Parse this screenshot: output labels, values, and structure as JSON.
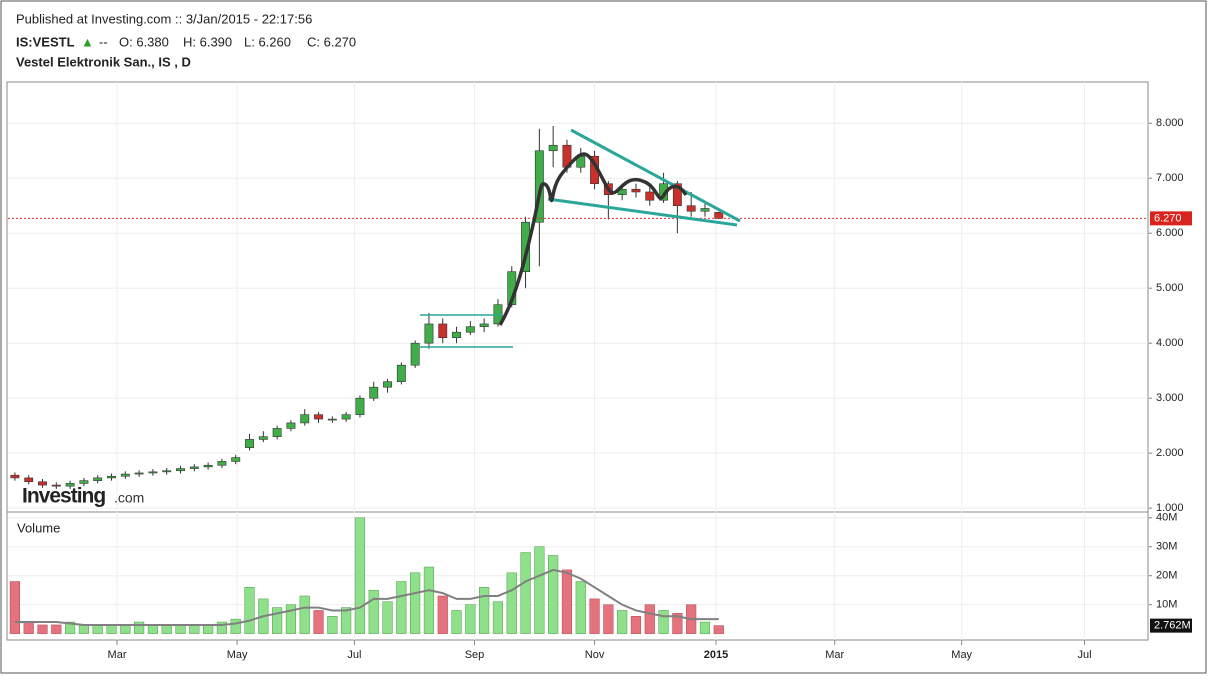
{
  "header": {
    "published": "Published at Investing.com :: 3/Jan/2015 - 22:17:56",
    "symbol": "IS:VESTL",
    "arrow": "▲",
    "change": "--",
    "ohlc": [
      "O: 6.380",
      "H: 6.390",
      "L: 6.260",
      "C: 6.270"
    ],
    "name": "Vestel Elektronik San., IS , D",
    "logo": "Investing",
    "logo_suffix": ".com"
  },
  "chart_data": [
    {
      "type": "candlestick",
      "categories": [
        null,
        null,
        null,
        null,
        null,
        null,
        null,
        null,
        null,
        null,
        null,
        null,
        null,
        null,
        null,
        null,
        null,
        null,
        null,
        null,
        null,
        null,
        null,
        null,
        null,
        null,
        null,
        null,
        null,
        null,
        null,
        null,
        null,
        null,
        null,
        null,
        null,
        null,
        null,
        null,
        null,
        null,
        null,
        null,
        null,
        null,
        null,
        null,
        null,
        null,
        null,
        null
      ],
      "open": [
        1.6,
        1.55,
        1.48,
        1.42,
        1.4,
        1.45,
        1.5,
        1.55,
        1.58,
        1.62,
        1.64,
        1.66,
        1.68,
        1.72,
        1.75,
        1.78,
        1.85,
        2.1,
        2.25,
        2.3,
        2.45,
        2.55,
        2.7,
        2.62,
        2.62,
        2.7,
        3.0,
        3.2,
        3.3,
        3.6,
        4.0,
        4.35,
        4.1,
        4.2,
        4.3,
        4.35,
        4.7,
        5.3,
        6.2,
        7.5,
        7.6,
        7.2,
        7.4,
        6.9,
        6.7,
        6.8,
        6.75,
        6.6,
        6.9,
        6.5,
        6.4,
        6.38
      ],
      "high": [
        1.65,
        1.6,
        1.53,
        1.47,
        1.5,
        1.55,
        1.6,
        1.63,
        1.67,
        1.69,
        1.71,
        1.73,
        1.77,
        1.8,
        1.83,
        1.9,
        1.97,
        2.35,
        2.4,
        2.5,
        2.6,
        2.8,
        2.75,
        2.67,
        2.75,
        3.05,
        3.3,
        3.35,
        3.65,
        4.05,
        4.55,
        4.45,
        4.3,
        4.4,
        4.45,
        4.8,
        5.4,
        6.3,
        7.9,
        7.95,
        7.7,
        7.55,
        7.5,
        6.95,
        6.9,
        6.9,
        6.85,
        7.1,
        6.95,
        6.75,
        6.55,
        6.39
      ],
      "low": [
        1.5,
        1.43,
        1.37,
        1.35,
        1.35,
        1.4,
        1.45,
        1.5,
        1.53,
        1.57,
        1.59,
        1.61,
        1.63,
        1.67,
        1.7,
        1.73,
        1.8,
        2.05,
        2.2,
        2.25,
        2.4,
        2.5,
        2.55,
        2.55,
        2.57,
        2.65,
        2.95,
        3.1,
        3.25,
        3.55,
        3.9,
        4.0,
        4.0,
        4.15,
        4.2,
        4.3,
        4.65,
        5.0,
        5.4,
        7.2,
        7.1,
        7.1,
        6.8,
        6.25,
        6.6,
        6.65,
        6.5,
        6.55,
        6.0,
        6.3,
        6.3,
        6.26
      ],
      "close": [
        1.55,
        1.48,
        1.42,
        1.4,
        1.45,
        1.5,
        1.55,
        1.58,
        1.62,
        1.64,
        1.66,
        1.68,
        1.72,
        1.75,
        1.78,
        1.85,
        1.92,
        2.25,
        2.3,
        2.45,
        2.55,
        2.7,
        2.62,
        2.62,
        2.7,
        3.0,
        3.2,
        3.3,
        3.6,
        4.0,
        4.35,
        4.1,
        4.2,
        4.3,
        4.35,
        4.7,
        5.3,
        6.2,
        7.5,
        7.6,
        7.2,
        7.4,
        6.9,
        6.7,
        6.8,
        6.75,
        6.6,
        6.9,
        6.5,
        6.4,
        6.45,
        6.27
      ],
      "up_color": "#3fae49",
      "down_color": "#c9302c",
      "last_price": {
        "value": 6.27,
        "label": "6.270"
      },
      "xlim": [
        -0.5,
        82.1
      ],
      "ylim": [
        0.93,
        8.75
      ],
      "yticks": [
        {
          "value": 1,
          "label": "1.000"
        },
        {
          "value": 2,
          "label": "2.000"
        },
        {
          "value": 3,
          "label": "3.000"
        },
        {
          "value": 4,
          "label": "4.000"
        },
        {
          "value": 5,
          "label": "5.000"
        },
        {
          "value": 6,
          "label": "6.000"
        },
        {
          "value": 7,
          "label": "7.000"
        },
        {
          "value": 8,
          "label": "8.000"
        }
      ],
      "grid": true
    },
    {
      "type": "bar",
      "title": "Volume",
      "values": [
        18,
        4,
        3,
        3,
        4,
        3,
        3,
        3,
        3,
        4,
        3,
        3,
        3,
        3,
        3,
        4,
        5,
        16,
        12,
        9,
        10,
        13,
        8,
        6,
        9,
        40,
        15,
        11,
        18,
        21,
        23,
        13,
        8,
        10,
        16,
        11,
        21,
        28,
        30,
        27,
        22,
        18,
        12,
        10,
        8,
        6,
        10,
        8,
        7,
        10,
        4,
        2.762
      ],
      "last_label": "2.762M",
      "average": {
        "color": "#808080",
        "values": [
          4,
          4,
          4,
          4,
          3.5,
          3,
          3,
          3,
          3,
          3,
          3,
          3,
          3,
          3,
          3,
          3,
          3.5,
          4.5,
          6,
          7,
          8,
          9,
          9,
          8,
          8,
          9,
          12,
          12,
          13,
          14,
          15,
          14,
          12,
          12,
          13,
          13,
          15,
          18,
          20,
          22,
          21,
          19,
          16,
          13,
          10,
          8,
          7,
          6,
          6,
          5,
          5,
          5
        ]
      },
      "up_color": "#8fe08a",
      "down_color": "#e5737d",
      "xlim": [
        -0.5,
        82.1
      ],
      "ylim": [
        -2.2,
        42
      ],
      "yticks": [
        {
          "value": 10,
          "label": "10M"
        },
        {
          "value": 20,
          "label": "20M"
        },
        {
          "value": 30,
          "label": "30M"
        },
        {
          "value": 40,
          "label": "40M"
        }
      ],
      "xticks": [
        {
          "value": 7.4,
          "label": "Mar"
        },
        {
          "value": 16.1,
          "label": "May"
        },
        {
          "value": 24.6,
          "label": "Jul"
        },
        {
          "value": 33.3,
          "label": "Sep"
        },
        {
          "value": 42.0,
          "label": "Nov"
        },
        {
          "value": 50.8,
          "label": "2015"
        },
        {
          "value": 59.4,
          "label": "Mar"
        },
        {
          "value": 68.6,
          "label": "May"
        },
        {
          "value": 77.5,
          "label": "Jul"
        }
      ],
      "grid": true
    }
  ]
}
